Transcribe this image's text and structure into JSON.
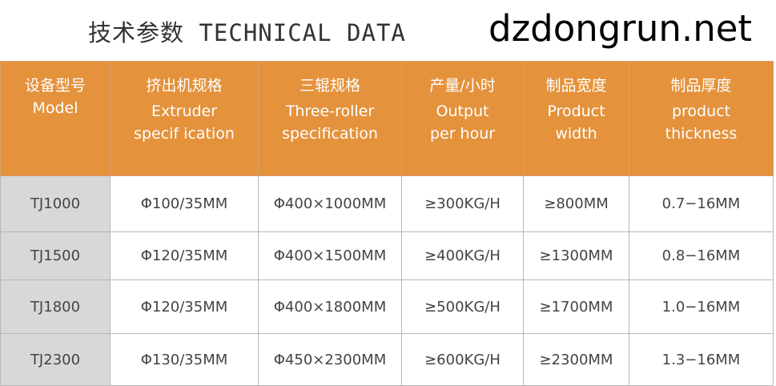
{
  "title": "技术参数 TECHNICAL DATA",
  "headers": [
    {
      "cn": "设备型号",
      "en1": "Model",
      "en2": ""
    },
    {
      "cn": "挤出机规格",
      "en1": "Extruder",
      "en2": "specif ication"
    },
    {
      "cn": "三辊规格",
      "en1": "Three-roller",
      "en2": "specification"
    },
    {
      "cn": "产量/小时",
      "en1": "Output",
      "en2": "per hour"
    },
    {
      "cn": "制品宽度",
      "en1": "Product",
      "en2": "width"
    },
    {
      "cn": "制品厚度",
      "en1": "product",
      "en2": "thickness"
    }
  ],
  "rows": [
    [
      "TJ1000",
      "Φ100/35MM",
      "Φ400×1000MM",
      "≥300KG/H",
      "≥800MM",
      "0.7−16MM"
    ],
    [
      "TJ1500",
      "Φ120/35MM",
      "Φ400×1500MM",
      "≥400KG/H",
      "≥1300MM",
      "0.8−16MM"
    ],
    [
      "TJ1800",
      "Φ120/35MM",
      "Φ400×1800MM",
      "≥500KG/H",
      "≥1700MM",
      "1.0−16MM"
    ],
    [
      "TJ2300",
      "Φ130/35MM",
      "Φ450×2300MM",
      "≥600KG/H",
      "≥2300MM",
      "1.3−16MM"
    ]
  ],
  "watermark": "dzdongrun.net"
}
